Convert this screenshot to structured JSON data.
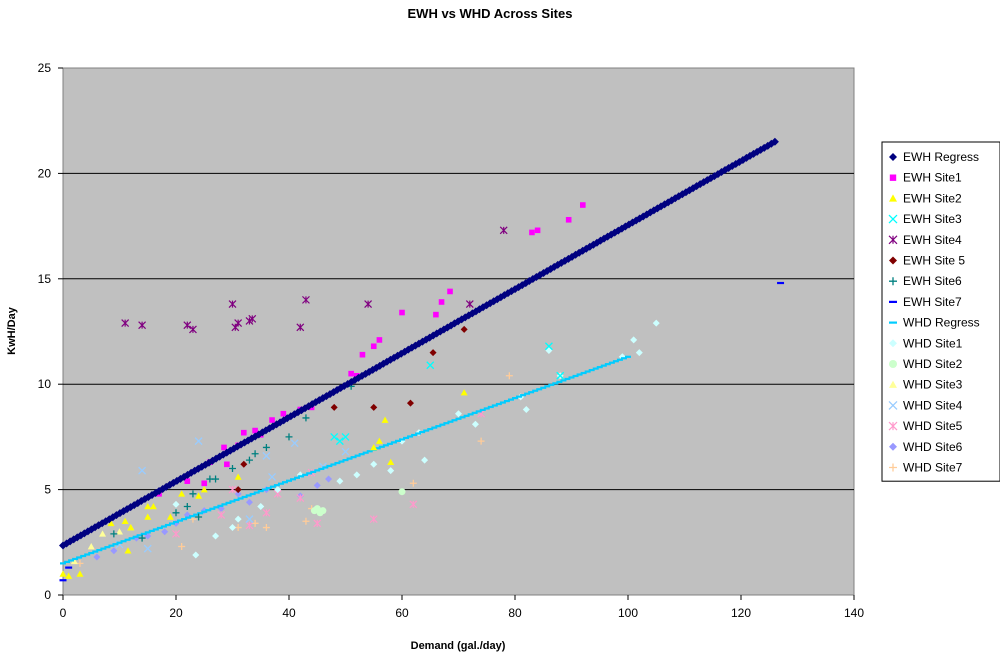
{
  "chart_data": {
    "type": "scatter",
    "title": "EWH vs WHD Across Sites",
    "xlabel": "Demand (gal./day)",
    "ylabel": "KwH/Day",
    "xlim": [
      0,
      140
    ],
    "ylim": [
      0,
      25
    ],
    "xticks": [
      0,
      20,
      40,
      60,
      80,
      100,
      120,
      140
    ],
    "yticks": [
      0,
      5,
      10,
      15,
      20,
      25
    ],
    "grid": "horizontal",
    "plot_background": "#c0c0c0",
    "legend_position": "right",
    "series": [
      {
        "name": "EWH Regress",
        "marker": "diamond",
        "color": "#000080",
        "line": {
          "x0": 0,
          "y0": 2.35,
          "x1": 126,
          "y1": 21.5,
          "n": 200
        }
      },
      {
        "name": "EWH Site1",
        "marker": "square",
        "color": "#ff00ff",
        "points": [
          [
            17,
            4.8
          ],
          [
            22,
            5.4
          ],
          [
            25,
            5.3
          ],
          [
            26,
            6.3
          ],
          [
            28.5,
            7.0
          ],
          [
            29,
            6.2
          ],
          [
            31,
            7.1
          ],
          [
            32,
            7.7
          ],
          [
            34,
            7.8
          ],
          [
            35,
            7.6
          ],
          [
            37,
            8.3
          ],
          [
            39,
            8.6
          ],
          [
            42,
            8.8
          ],
          [
            44,
            8.9
          ],
          [
            51,
            10.5
          ],
          [
            52,
            10.4
          ],
          [
            53,
            11.4
          ],
          [
            55,
            11.8
          ],
          [
            56,
            12.1
          ],
          [
            60,
            13.4
          ],
          [
            66,
            13.3
          ],
          [
            67,
            13.9
          ],
          [
            68.5,
            14.4
          ],
          [
            83,
            17.2
          ],
          [
            84,
            17.3
          ],
          [
            89.5,
            17.8
          ],
          [
            92,
            18.5
          ]
        ]
      },
      {
        "name": "EWH Site2",
        "marker": "triangle",
        "color": "#ffff00",
        "points": [
          [
            0,
            1.0
          ],
          [
            1,
            0.9
          ],
          [
            3,
            1.0
          ],
          [
            8.5,
            3.4
          ],
          [
            11,
            3.5
          ],
          [
            11.5,
            2.1
          ],
          [
            12,
            3.2
          ],
          [
            15,
            3.7
          ],
          [
            15,
            4.2
          ],
          [
            16,
            4.2
          ],
          [
            19,
            3.7
          ],
          [
            21,
            4.8
          ],
          [
            24,
            4.7
          ],
          [
            25,
            5.0
          ],
          [
            31,
            5.6
          ],
          [
            55,
            7.0
          ],
          [
            56,
            7.3
          ],
          [
            57,
            8.3
          ],
          [
            58,
            6.3
          ],
          [
            71,
            9.6
          ]
        ]
      },
      {
        "name": "EWH Site3",
        "marker": "x",
        "color": "#00ffff",
        "points": [
          [
            48,
            7.5
          ],
          [
            49,
            7.3
          ],
          [
            50,
            7.5
          ],
          [
            65,
            10.9
          ],
          [
            86,
            11.8
          ],
          [
            88,
            10.4
          ]
        ]
      },
      {
        "name": "EWH Site4",
        "marker": "asterisk",
        "color": "#800080",
        "points": [
          [
            11,
            12.9
          ],
          [
            14,
            12.8
          ],
          [
            22,
            12.8
          ],
          [
            23,
            12.6
          ],
          [
            30,
            13.8
          ],
          [
            30.5,
            12.7
          ],
          [
            31,
            12.9
          ],
          [
            33,
            13.0
          ],
          [
            33.5,
            13.1
          ],
          [
            42,
            12.7
          ],
          [
            43,
            14.0
          ],
          [
            54,
            13.8
          ],
          [
            72,
            13.8
          ],
          [
            78,
            17.3
          ]
        ]
      },
      {
        "name": "EWH Site 5",
        "marker": "diamond",
        "color": "#800000",
        "points": [
          [
            31,
            5.0
          ],
          [
            32,
            6.2
          ],
          [
            48,
            8.9
          ],
          [
            55,
            8.9
          ],
          [
            61.5,
            9.1
          ],
          [
            65.5,
            11.5
          ],
          [
            71,
            12.6
          ]
        ]
      },
      {
        "name": "EWH Site6",
        "marker": "plus",
        "color": "#008080",
        "points": [
          [
            9,
            2.9
          ],
          [
            14,
            2.7
          ],
          [
            20,
            3.9
          ],
          [
            22,
            4.2
          ],
          [
            23,
            4.8
          ],
          [
            24,
            3.7
          ],
          [
            26,
            5.5
          ],
          [
            27,
            5.5
          ],
          [
            30,
            6.0
          ],
          [
            33,
            6.4
          ],
          [
            34,
            6.7
          ],
          [
            36,
            7.0
          ],
          [
            40,
            7.5
          ],
          [
            43,
            8.4
          ],
          [
            51,
            9.9
          ]
        ]
      },
      {
        "name": "EWH Site7",
        "marker": "dash",
        "color": "#0000ff",
        "points": [
          [
            1,
            1.3
          ],
          [
            0,
            0.7
          ],
          [
            127,
            14.8
          ]
        ]
      },
      {
        "name": "WHD Regress",
        "marker": "dash",
        "color": "#00ccff",
        "line": {
          "x0": 0,
          "y0": 1.5,
          "x1": 100,
          "y1": 11.3,
          "n": 140
        }
      },
      {
        "name": "WHD Site1",
        "marker": "diamond",
        "color": "#ccffff",
        "points": [
          [
            20,
            4.3
          ],
          [
            23.5,
            1.9
          ],
          [
            27,
            2.8
          ],
          [
            30,
            3.2
          ],
          [
            31,
            3.6
          ],
          [
            35,
            4.2
          ],
          [
            38,
            5.0
          ],
          [
            42,
            5.7
          ],
          [
            49,
            5.4
          ],
          [
            52,
            5.7
          ],
          [
            55,
            6.2
          ],
          [
            58,
            5.9
          ],
          [
            60,
            7.3
          ],
          [
            63,
            7.7
          ],
          [
            64,
            6.4
          ],
          [
            70,
            8.6
          ],
          [
            73,
            8.1
          ],
          [
            81,
            9.4
          ],
          [
            82,
            8.8
          ],
          [
            86,
            11.6
          ],
          [
            88,
            10.4
          ],
          [
            99,
            11.3
          ],
          [
            101,
            12.1
          ],
          [
            102,
            11.5
          ],
          [
            105,
            12.9
          ]
        ]
      },
      {
        "name": "WHD Site2",
        "marker": "circle",
        "color": "#ccffcc",
        "points": [
          [
            44.5,
            4.0
          ],
          [
            45,
            4.1
          ],
          [
            45.5,
            3.9
          ],
          [
            46,
            4.0
          ],
          [
            60,
            4.9
          ]
        ]
      },
      {
        "name": "WHD Site3",
        "marker": "triangle",
        "color": "#ffff99",
        "points": [
          [
            2,
            1.6
          ],
          [
            5,
            2.3
          ],
          [
            7,
            2.9
          ],
          [
            10,
            3.0
          ],
          [
            12,
            3.2
          ]
        ]
      },
      {
        "name": "WHD Site4",
        "marker": "x",
        "color": "#99ccff",
        "points": [
          [
            10,
            2.4
          ],
          [
            14,
            5.9
          ],
          [
            15,
            2.2
          ],
          [
            24,
            7.3
          ],
          [
            33,
            3.6
          ],
          [
            36,
            6.6
          ],
          [
            37,
            5.6
          ],
          [
            41,
            7.2
          ],
          [
            46,
            6.1
          ],
          [
            50,
            6.8
          ]
        ]
      },
      {
        "name": "WHD Site5",
        "marker": "asterisk",
        "color": "#ff99cc",
        "points": [
          [
            20,
            2.9
          ],
          [
            28,
            3.8
          ],
          [
            30,
            5.0
          ],
          [
            33,
            3.3
          ],
          [
            36,
            3.9
          ],
          [
            38,
            4.8
          ],
          [
            42,
            4.6
          ],
          [
            44,
            5.8
          ],
          [
            45,
            3.4
          ],
          [
            55,
            3.6
          ],
          [
            62,
            4.3
          ],
          [
            74,
            8.6
          ]
        ]
      },
      {
        "name": "WHD Site6",
        "marker": "diamond",
        "color": "#9999ff",
        "points": [
          [
            6,
            1.8
          ],
          [
            9,
            2.1
          ],
          [
            13,
            2.7
          ],
          [
            15,
            2.8
          ],
          [
            18,
            3.0
          ],
          [
            20,
            3.4
          ],
          [
            22,
            3.8
          ],
          [
            25,
            4.0
          ],
          [
            28,
            4.1
          ],
          [
            31,
            4.8
          ],
          [
            33,
            4.4
          ],
          [
            36,
            5.0
          ],
          [
            42,
            4.7
          ],
          [
            45,
            5.2
          ],
          [
            47,
            5.5
          ]
        ]
      },
      {
        "name": "WHD Site7",
        "marker": "plus",
        "color": "#ffcc99",
        "points": [
          [
            3,
            1.5
          ],
          [
            21,
            2.3
          ],
          [
            23,
            3.6
          ],
          [
            31,
            3.2
          ],
          [
            34,
            3.4
          ],
          [
            36,
            3.2
          ],
          [
            43,
            3.5
          ],
          [
            44,
            4.1
          ],
          [
            62,
            5.3
          ],
          [
            74,
            7.3
          ],
          [
            79,
            10.4
          ]
        ]
      }
    ]
  }
}
